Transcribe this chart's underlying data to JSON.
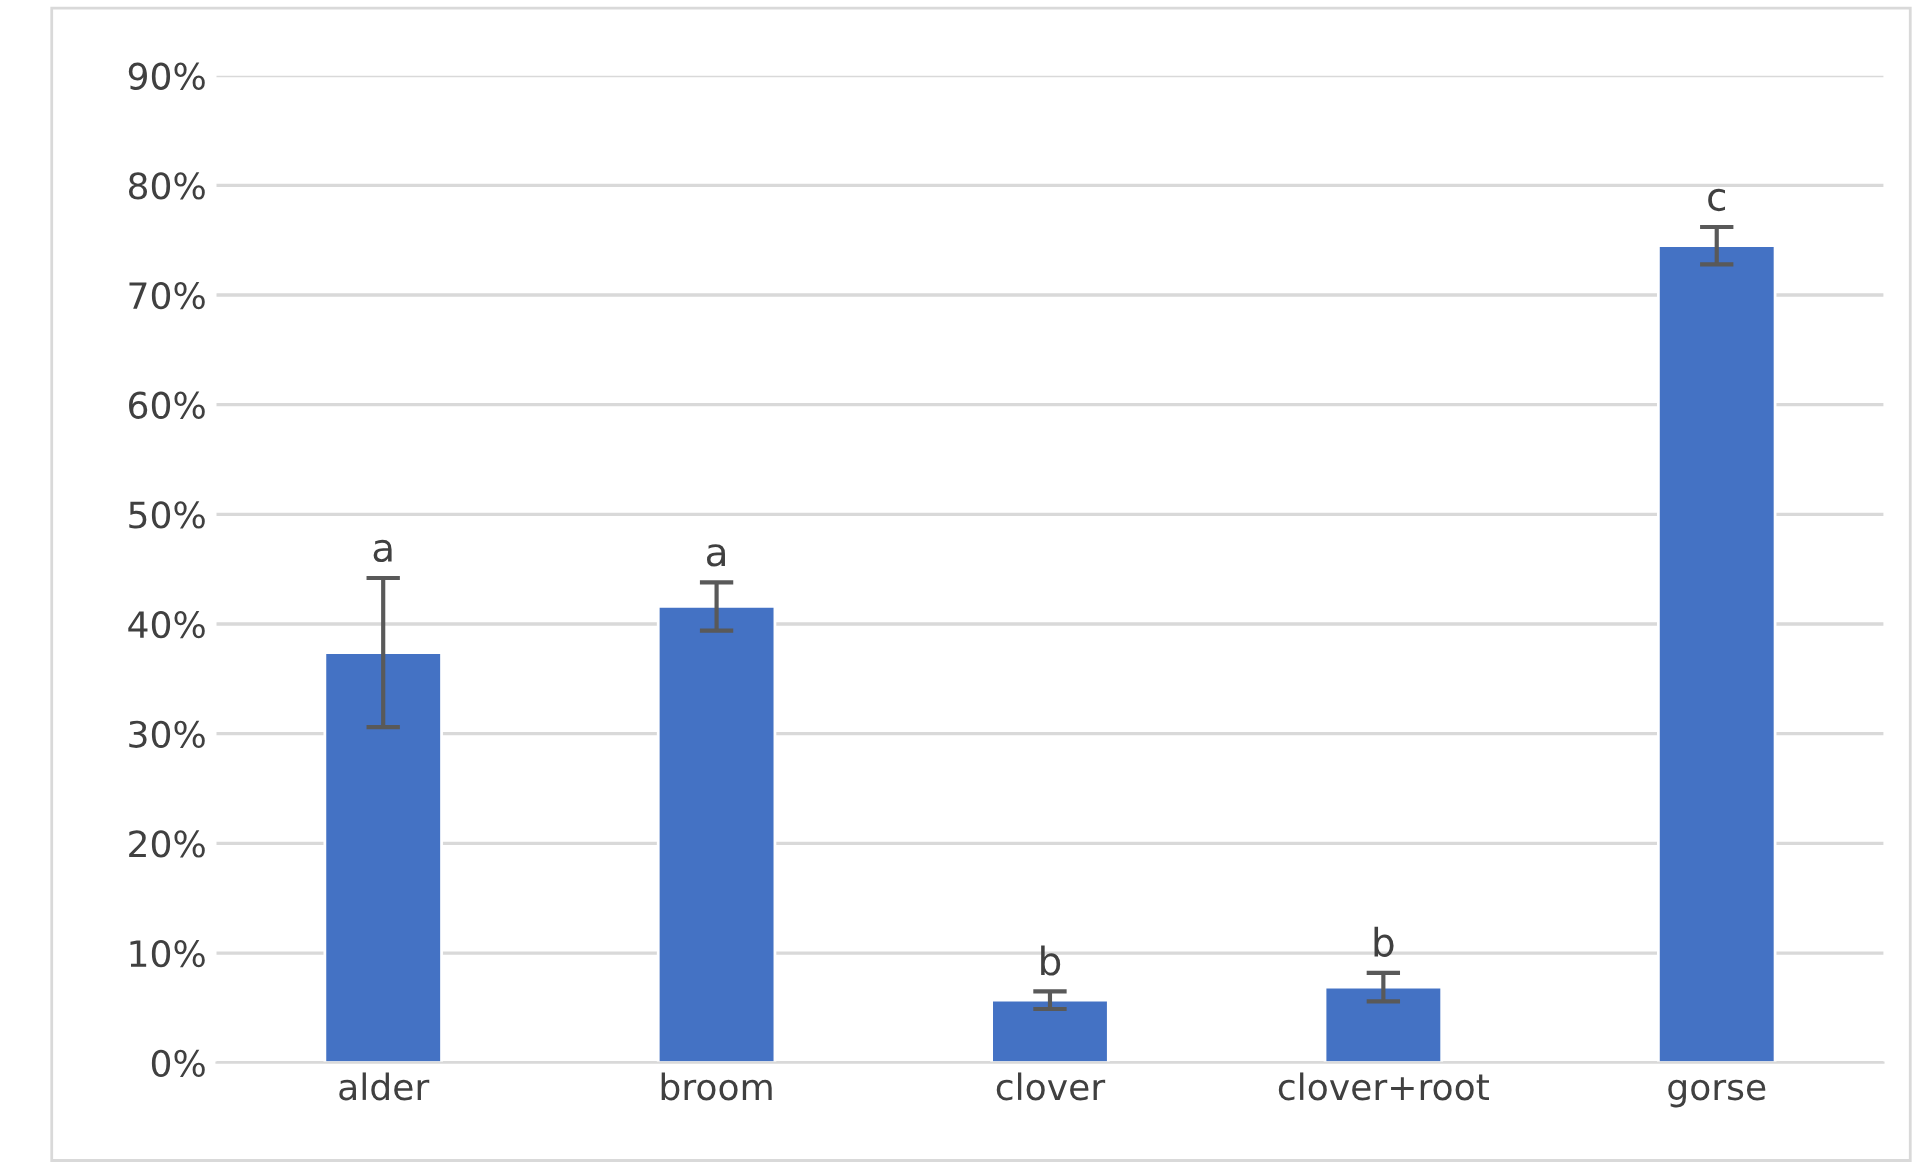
{
  "chart_data": {
    "type": "bar",
    "categories": [
      "alder",
      "broom",
      "clover",
      "clover+root",
      "gorse"
    ],
    "values": [
      37.4,
      41.6,
      5.7,
      6.9,
      74.5
    ],
    "errors": [
      6.8,
      2.2,
      0.8,
      1.3,
      1.7
    ],
    "color": "#4472c4",
    "ylim": [
      0,
      90
    ],
    "yticks": [
      {
        "value": 0,
        "label": "0%"
      },
      {
        "value": 10,
        "label": "10%"
      },
      {
        "value": 20,
        "label": "20%"
      },
      {
        "value": 30,
        "label": "30%"
      },
      {
        "value": 40,
        "label": "40%"
      },
      {
        "value": 50,
        "label": "50%"
      },
      {
        "value": 60,
        "label": "60%"
      },
      {
        "value": 70,
        "label": "70%"
      },
      {
        "value": 80,
        "label": "80%"
      },
      {
        "value": 90,
        "label": "90%"
      }
    ],
    "grid": "y",
    "annotations": [
      "a",
      "a",
      "b",
      "b",
      "c"
    ]
  }
}
